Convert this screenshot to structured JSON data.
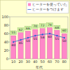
{
  "chart_data": {
    "type": "bar",
    "x_label": "年代",
    "categories": [
      "10",
      "20",
      "30",
      "40",
      "50",
      "60",
      "70",
      "80"
    ],
    "series": [
      {
        "name": "ヒーターを使っていた",
        "type": "bar",
        "color": "#ff88c8",
        "values": [
          55,
          62,
          66,
          70,
          72,
          74,
          68,
          60
        ]
      },
      {
        "name": "ヒーターをつけます",
        "type": "line",
        "color": "#3366cc",
        "marker": "circle",
        "values": [
          40,
          45,
          50,
          55,
          58,
          60,
          55,
          50
        ]
      }
    ],
    "ylim": [
      0,
      100
    ],
    "yticks": [
      0,
      20,
      40,
      60,
      80,
      100
    ],
    "grid": false,
    "legend": "top-right",
    "data_labels": true
  }
}
